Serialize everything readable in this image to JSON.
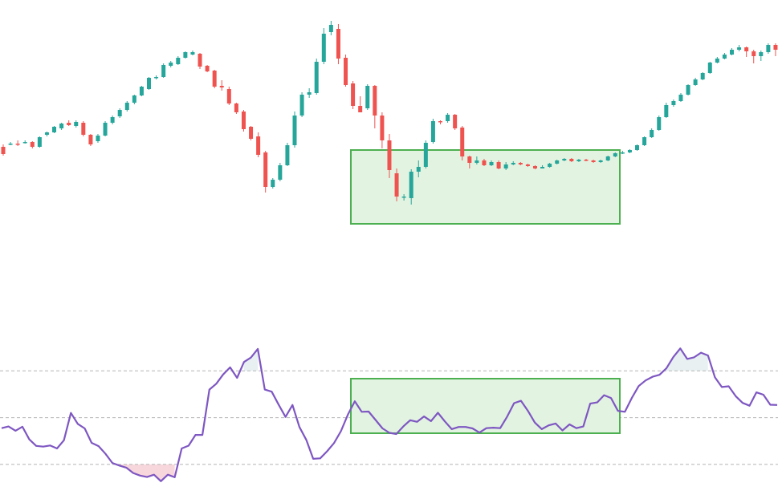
{
  "colors": {
    "up": "#26a69a",
    "down": "#ef5350",
    "rsi_line": "#7e57c2",
    "zone_stroke": "#4caf50",
    "zone_fill": "#e3f3e1",
    "guide": "#b5b5b5",
    "oversold_fill": "#f8d7dc",
    "overbought_fill": "#e8f0f2"
  },
  "chart_data": [
    {
      "type": "candlestick",
      "title": "",
      "xlabel": "",
      "ylabel": "",
      "ylim": [
        0,
        330
      ],
      "grid": false,
      "legend": "none",
      "series": [
        {
          "candles": [
            [
              157,
              148,
              160,
              146
            ],
            [
              160,
              161,
              163,
              159
            ],
            [
              161,
              160,
              165,
              158
            ],
            [
              163,
              163,
              165,
              161
            ],
            [
              163,
              157,
              164,
              155
            ],
            [
              157,
              169,
              170,
              156
            ],
            [
              172,
              175,
              176,
              170
            ],
            [
              175,
              182,
              183,
              174
            ],
            [
              180,
              186,
              187,
              178
            ],
            [
              187,
              184,
              190,
              183
            ],
            [
              183,
              188,
              190,
              181
            ],
            [
              187,
              172,
              189,
              170
            ],
            [
              172,
              160,
              173,
              158
            ],
            [
              164,
              171,
              173,
              162
            ],
            [
              171,
              187,
              189,
              170
            ],
            [
              187,
              194,
              196,
              185
            ],
            [
              195,
              203,
              205,
              193
            ],
            [
              203,
              212,
              214,
              201
            ],
            [
              212,
              221,
              222,
              210
            ],
            [
              221,
              232,
              233,
              220
            ],
            [
              229,
              243,
              244,
              228
            ],
            [
              243,
              244,
              246,
              241
            ],
            [
              244,
              259,
              261,
              243
            ],
            [
              258,
              262,
              264,
              256
            ],
            [
              260,
              268,
              270,
              259
            ],
            [
              268,
              275,
              276,
              267
            ],
            [
              272,
              275,
              277,
              271
            ],
            [
              273,
              257,
              274,
              254
            ],
            [
              258,
              251,
              259,
              250
            ],
            [
              252,
              232,
              253,
              230
            ],
            [
              233,
              231,
              240,
              227
            ],
            [
              229,
              211,
              232,
              209
            ],
            [
              211,
              200,
              212,
              198
            ],
            [
              201,
              179,
              203,
              176
            ],
            [
              182,
              167,
              183,
              165
            ],
            [
              170,
              147,
              175,
              144
            ],
            [
              150,
              107,
              152,
              100
            ],
            [
              107,
              116,
              118,
              105
            ],
            [
              116,
              134,
              137,
              114
            ],
            [
              134,
              159,
              162,
              133
            ],
            [
              159,
              196,
              201,
              156
            ],
            [
              196,
              222,
              225,
              194
            ],
            [
              222,
              225,
              230,
              218
            ],
            [
              224,
              263,
              267,
              222
            ],
            [
              263,
              298,
              305,
              260
            ],
            [
              300,
              309,
              314,
              296
            ],
            [
              304,
              267,
              310,
              260
            ],
            [
              268,
              234,
              272,
              232
            ],
            [
              236,
              208,
              239,
              204
            ],
            [
              208,
              200,
              220,
              200
            ],
            [
              205,
              233,
              235,
              203
            ],
            [
              233,
              196,
              234,
              180
            ],
            [
              196,
              165,
              200,
              155
            ],
            [
              165,
              128,
              173,
              118
            ],
            [
              124,
              95,
              130,
              89
            ],
            [
              95,
              95,
              98,
              90
            ],
            [
              93,
              126,
              129,
              85
            ],
            [
              126,
              132,
              140,
              119
            ],
            [
              132,
              162,
              165,
              130
            ],
            [
              163,
              189,
              192,
              161
            ],
            [
              189,
              188,
              190,
              185
            ],
            [
              189,
              197,
              199,
              187
            ],
            [
              197,
              180,
              198,
              178
            ],
            [
              181,
              145,
              183,
              140
            ],
            [
              145,
              137,
              146,
              130
            ],
            [
              137,
              140,
              145,
              135
            ],
            [
              140,
              134,
              142,
              133
            ],
            [
              134,
              138,
              140,
              133
            ],
            [
              138,
              130,
              140,
              129
            ],
            [
              130,
              135,
              138,
              128
            ],
            [
              135,
              137,
              139,
              134
            ],
            [
              137,
              135,
              138,
              134
            ],
            [
              135,
              133,
              136,
              132
            ],
            [
              133,
              130,
              134,
              129
            ],
            [
              130,
              132,
              134,
              131
            ],
            [
              132,
              136,
              137,
              131
            ],
            [
              136,
              140,
              141,
              135
            ],
            [
              140,
              142,
              143,
              139
            ],
            [
              142,
              139,
              143,
              138
            ],
            [
              139,
              141,
              142,
              138
            ],
            [
              141,
              140,
              142,
              139
            ],
            [
              140,
              138,
              141,
              137
            ],
            [
              138,
              140,
              141,
              137
            ],
            [
              140,
              145,
              146,
              139
            ],
            [
              145,
              149,
              150,
              144
            ],
            [
              149,
              150,
              152,
              148
            ],
            [
              150,
              153,
              154,
              149
            ],
            [
              153,
              159,
              160,
              152
            ],
            [
              159,
              169,
              170,
              158
            ],
            [
              169,
              178,
              180,
              168
            ],
            [
              178,
              194,
              196,
              177
            ],
            [
              194,
              209,
              212,
              193
            ],
            [
              209,
              214,
              216,
              207
            ],
            [
              214,
              222,
              224,
              213
            ],
            [
              222,
              234,
              235,
              221
            ],
            [
              234,
              241,
              243,
              233
            ],
            [
              241,
              249,
              250,
              240
            ],
            [
              249,
              262,
              263,
              248
            ],
            [
              262,
              267,
              269,
              261
            ],
            [
              267,
              272,
              274,
              266
            ],
            [
              272,
              278,
              280,
              271
            ],
            [
              278,
              281,
              284,
              276
            ],
            [
              281,
              276,
              282,
              269
            ],
            [
              276,
              270,
              278,
              261
            ],
            [
              270,
              275,
              277,
              264
            ],
            [
              275,
              284,
              286,
              273
            ],
            [
              284,
              278,
              286,
              270
            ],
            [
              278,
              268,
              280,
              262
            ],
            [
              268,
              265,
              271,
              258
            ]
          ]
        }
      ]
    },
    {
      "type": "line",
      "title": "",
      "xlabel": "",
      "ylabel": "",
      "ylim": [
        20,
        90
      ],
      "guides": [
        30,
        50,
        70
      ],
      "grid": false,
      "legend": "none",
      "series": [
        {
          "values": [
            45.5,
            46.2,
            44.4,
            46.1,
            40.7,
            37.9,
            37.6,
            38.1,
            36.8,
            40.3,
            52.0,
            47.3,
            45.4,
            39.2,
            37.8,
            34.5,
            30.6,
            29.5,
            28.6,
            26.3,
            25.2,
            24.6,
            25.6,
            22.8,
            25.6,
            24.5,
            36.8,
            38.0,
            42.6,
            42.6,
            62.0,
            64.5,
            68.5,
            71.5,
            67.0,
            73.8,
            75.7,
            79.4,
            62.0,
            61.1,
            55.6,
            50.3,
            55.4,
            46.0,
            40.5,
            32.4,
            32.6,
            35.6,
            39.1,
            44.2,
            51.3,
            57.0,
            52.5,
            52.6,
            49.0,
            45.4,
            43.5,
            43.0,
            46.2,
            48.9,
            48.2,
            50.5,
            48.5,
            52.1,
            48.4,
            45.1,
            46.0,
            46.0,
            45.4,
            43.6,
            45.5,
            45.7,
            45.5,
            50.4,
            56.2,
            57.2,
            52.9,
            47.9,
            45.1,
            46.7,
            47.5,
            44.5,
            47.1,
            45.5,
            46.2,
            56.0,
            56.5,
            59.6,
            58.4,
            52.9,
            52.5,
            58.4,
            63.5,
            65.9,
            67.5,
            68.3,
            71.1,
            75.9,
            79.6,
            75.1,
            75.8,
            77.8,
            76.6,
            67.3,
            63.1,
            63.4,
            59.2,
            56.3,
            55.1,
            60.8,
            59.8,
            55.5,
            55.4
          ]
        }
      ]
    }
  ]
}
